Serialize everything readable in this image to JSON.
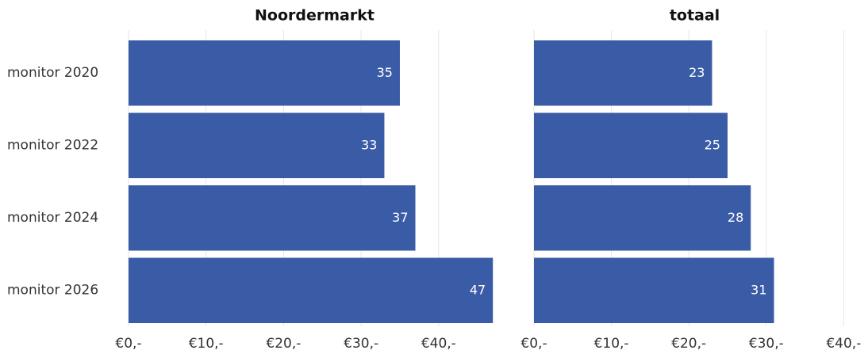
{
  "chart_data": [
    {
      "type": "bar",
      "orientation": "horizontal",
      "title": "Noordermarkt",
      "categories": [
        "monitor 2020",
        "monitor 2022",
        "monitor 2024",
        "monitor 2026"
      ],
      "values": [
        35,
        33,
        37,
        47
      ],
      "color": "#3a5ba5",
      "xlim": [
        0,
        48
      ],
      "xticks": [
        {
          "value": 0,
          "label": "€0,-"
        },
        {
          "value": 10,
          "label": "€10,-"
        },
        {
          "value": 20,
          "label": "€20,-"
        },
        {
          "value": 30,
          "label": "€30,-"
        },
        {
          "value": 40,
          "label": "€40,-"
        }
      ],
      "grid": true
    },
    {
      "type": "bar",
      "orientation": "horizontal",
      "title": "totaal",
      "values": [
        23,
        25,
        28,
        31
      ],
      "color": "#3a5ba5",
      "xlim": [
        0,
        41.5
      ],
      "xticks": [
        {
          "value": 0,
          "label": "€0,-"
        },
        {
          "value": 10,
          "label": "€10,-"
        },
        {
          "value": 20,
          "label": "€20,-"
        },
        {
          "value": 30,
          "label": "€30,-"
        },
        {
          "value": 40,
          "label": "€40,-"
        }
      ],
      "grid": true
    }
  ]
}
